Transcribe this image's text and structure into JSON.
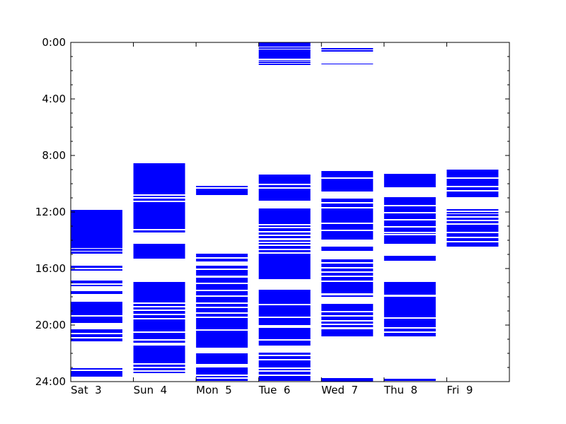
{
  "chart_data": {
    "type": "bar",
    "orientation": "vertical-time-blocks",
    "grid": false,
    "x_categories": [
      "Sat  3",
      "Sun  4",
      "Mon  5",
      "Tue  6",
      "Wed  7",
      "Thu  8",
      "Fri  9"
    ],
    "y_axis": {
      "ylim_hours": [
        0,
        24
      ],
      "inverted": true,
      "major_ticks": [
        {
          "hours": 0,
          "label": "0:00"
        },
        {
          "hours": 4,
          "label": "4:00"
        },
        {
          "hours": 8,
          "label": "8:00"
        },
        {
          "hours": 12,
          "label": "12:00"
        },
        {
          "hours": 16,
          "label": "16:00"
        },
        {
          "hours": 20,
          "label": "20:00"
        },
        {
          "hours": 24,
          "label": "24:00"
        }
      ],
      "minor_step_hours": 1
    },
    "bar_color": "#0000ff",
    "days": [
      {
        "label": "Sat  3",
        "intervals": [
          [
            11.85,
            14.55
          ],
          [
            14.6,
            14.75
          ],
          [
            14.8,
            14.95
          ],
          [
            15.8,
            15.95
          ],
          [
            16.05,
            16.15
          ],
          [
            16.85,
            17.05
          ],
          [
            17.15,
            17.25
          ],
          [
            17.6,
            17.8
          ],
          [
            18.35,
            19.3
          ],
          [
            19.4,
            19.85
          ],
          [
            20.3,
            20.55
          ],
          [
            20.65,
            20.85
          ],
          [
            20.95,
            21.15
          ],
          [
            23.05,
            23.15
          ],
          [
            23.25,
            23.65
          ]
        ]
      },
      {
        "label": "Sun  4",
        "intervals": [
          [
            8.55,
            10.75
          ],
          [
            10.85,
            10.95
          ],
          [
            11.05,
            11.2
          ],
          [
            11.3,
            13.2
          ],
          [
            13.3,
            13.45
          ],
          [
            14.25,
            15.3
          ],
          [
            16.95,
            18.4
          ],
          [
            18.5,
            18.65
          ],
          [
            18.75,
            18.9
          ],
          [
            19.0,
            19.2
          ],
          [
            19.3,
            19.5
          ],
          [
            19.6,
            20.45
          ],
          [
            20.55,
            21.0
          ],
          [
            21.1,
            21.25
          ],
          [
            21.45,
            22.7
          ],
          [
            22.8,
            22.95
          ],
          [
            23.05,
            23.2
          ],
          [
            23.3,
            23.4
          ]
        ]
      },
      {
        "label": "Mon  5",
        "intervals": [
          [
            10.15,
            10.25
          ],
          [
            10.35,
            10.8
          ],
          [
            14.95,
            15.2
          ],
          [
            15.3,
            15.5
          ],
          [
            15.8,
            16.0
          ],
          [
            16.1,
            16.5
          ],
          [
            16.65,
            17.0
          ],
          [
            17.1,
            17.5
          ],
          [
            17.6,
            17.9
          ],
          [
            18.0,
            18.4
          ],
          [
            18.5,
            18.7
          ],
          [
            18.8,
            19.1
          ],
          [
            19.2,
            19.4
          ],
          [
            19.5,
            20.3
          ],
          [
            20.4,
            21.6
          ],
          [
            22.0,
            22.75
          ],
          [
            23.0,
            23.5
          ],
          [
            23.6,
            23.7
          ],
          [
            23.8,
            23.95
          ]
        ]
      },
      {
        "label": "Tue  6",
        "intervals": [
          [
            0.0,
            0.3
          ],
          [
            0.35,
            0.45
          ],
          [
            0.5,
            1.15
          ],
          [
            1.25,
            1.3
          ],
          [
            1.35,
            1.45
          ],
          [
            1.5,
            1.6
          ],
          [
            9.35,
            10.0
          ],
          [
            10.1,
            10.25
          ],
          [
            10.35,
            11.2
          ],
          [
            11.75,
            12.85
          ],
          [
            12.95,
            13.05
          ],
          [
            13.15,
            13.35
          ],
          [
            13.45,
            13.6
          ],
          [
            13.7,
            13.85
          ],
          [
            14.0,
            14.1
          ],
          [
            14.2,
            14.3
          ],
          [
            14.4,
            14.6
          ],
          [
            14.7,
            14.85
          ],
          [
            14.95,
            16.75
          ],
          [
            17.5,
            18.5
          ],
          [
            18.6,
            19.4
          ],
          [
            19.5,
            20.0
          ],
          [
            20.2,
            21.0
          ],
          [
            21.1,
            21.45
          ],
          [
            21.95,
            22.1
          ],
          [
            22.2,
            22.4
          ],
          [
            22.5,
            23.0
          ],
          [
            23.1,
            23.2
          ],
          [
            23.3,
            23.5
          ],
          [
            23.6,
            23.95
          ]
        ]
      },
      {
        "label": "Wed  7",
        "intervals": [
          [
            0.4,
            0.5
          ],
          [
            0.55,
            0.65
          ],
          [
            1.5,
            1.55
          ],
          [
            9.1,
            9.55
          ],
          [
            9.65,
            10.55
          ],
          [
            11.05,
            11.3
          ],
          [
            11.4,
            11.65
          ],
          [
            11.75,
            12.75
          ],
          [
            12.85,
            13.25
          ],
          [
            13.35,
            13.95
          ],
          [
            14.45,
            14.75
          ],
          [
            15.35,
            15.55
          ],
          [
            15.65,
            15.9
          ],
          [
            16.0,
            16.2
          ],
          [
            16.3,
            16.5
          ],
          [
            16.6,
            16.85
          ],
          [
            16.95,
            17.75
          ],
          [
            17.9,
            18.0
          ],
          [
            18.5,
            19.0
          ],
          [
            19.1,
            19.3
          ],
          [
            19.4,
            19.65
          ],
          [
            19.75,
            19.9
          ],
          [
            20.0,
            20.15
          ],
          [
            20.3,
            20.8
          ],
          [
            23.75,
            24.0
          ]
        ]
      },
      {
        "label": "Thu  8",
        "intervals": [
          [
            9.3,
            10.25
          ],
          [
            10.95,
            11.5
          ],
          [
            11.6,
            12.0
          ],
          [
            12.1,
            12.5
          ],
          [
            12.6,
            13.0
          ],
          [
            13.1,
            13.4
          ],
          [
            13.5,
            13.55
          ],
          [
            13.65,
            14.25
          ],
          [
            15.1,
            15.45
          ],
          [
            16.95,
            17.85
          ],
          [
            18.0,
            19.45
          ],
          [
            19.55,
            20.15
          ],
          [
            20.25,
            20.45
          ],
          [
            20.55,
            20.8
          ],
          [
            23.8,
            23.95
          ]
        ]
      },
      {
        "label": "Fri  9",
        "intervals": [
          [
            9.0,
            9.55
          ],
          [
            9.65,
            10.15
          ],
          [
            10.25,
            10.45
          ],
          [
            10.55,
            10.95
          ],
          [
            11.8,
            11.9
          ],
          [
            12.0,
            12.1
          ],
          [
            12.15,
            12.3
          ],
          [
            12.4,
            12.55
          ],
          [
            12.65,
            12.8
          ],
          [
            12.9,
            13.4
          ],
          [
            13.5,
            13.75
          ],
          [
            13.85,
            14.05
          ],
          [
            14.15,
            14.45
          ]
        ]
      }
    ]
  }
}
